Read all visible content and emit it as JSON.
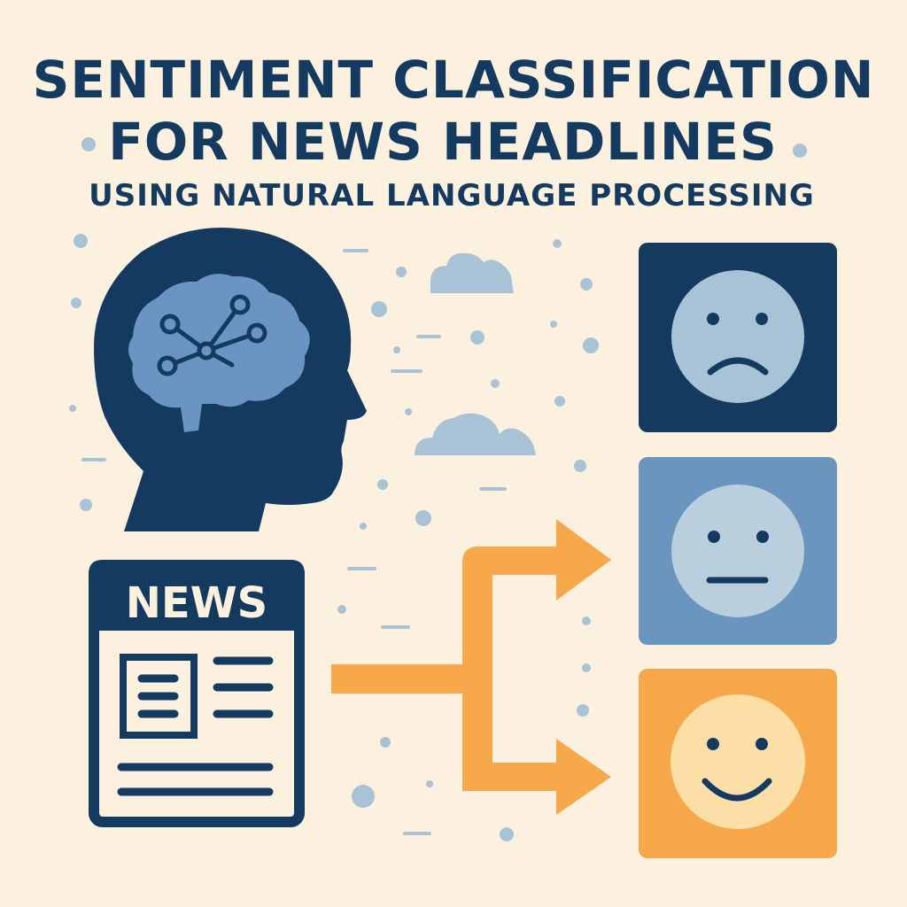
{
  "title": {
    "line1": "SENTIMENT CLASSIFICATION",
    "line2": "FOR NEWS HEADLINES",
    "subtitle": "USING NATURAL LANGUAGE PROCESSING"
  },
  "newspaper": {
    "label": "NEWS"
  },
  "sentiments": [
    {
      "name": "negative",
      "icon": "sad-face-icon"
    },
    {
      "name": "neutral",
      "icon": "neutral-face-icon"
    },
    {
      "name": "positive",
      "icon": "happy-face-icon"
    }
  ],
  "colors": {
    "background": "#FCF0DF",
    "navy": "#143A60",
    "brain_blue": "#6A94C2",
    "light_blue": "#A9C3D6",
    "mid_blue": "#6A95BF",
    "face_light": "#B9CFDE",
    "orange": "#F7A84A",
    "face_yellow": "#FBDFA6"
  }
}
